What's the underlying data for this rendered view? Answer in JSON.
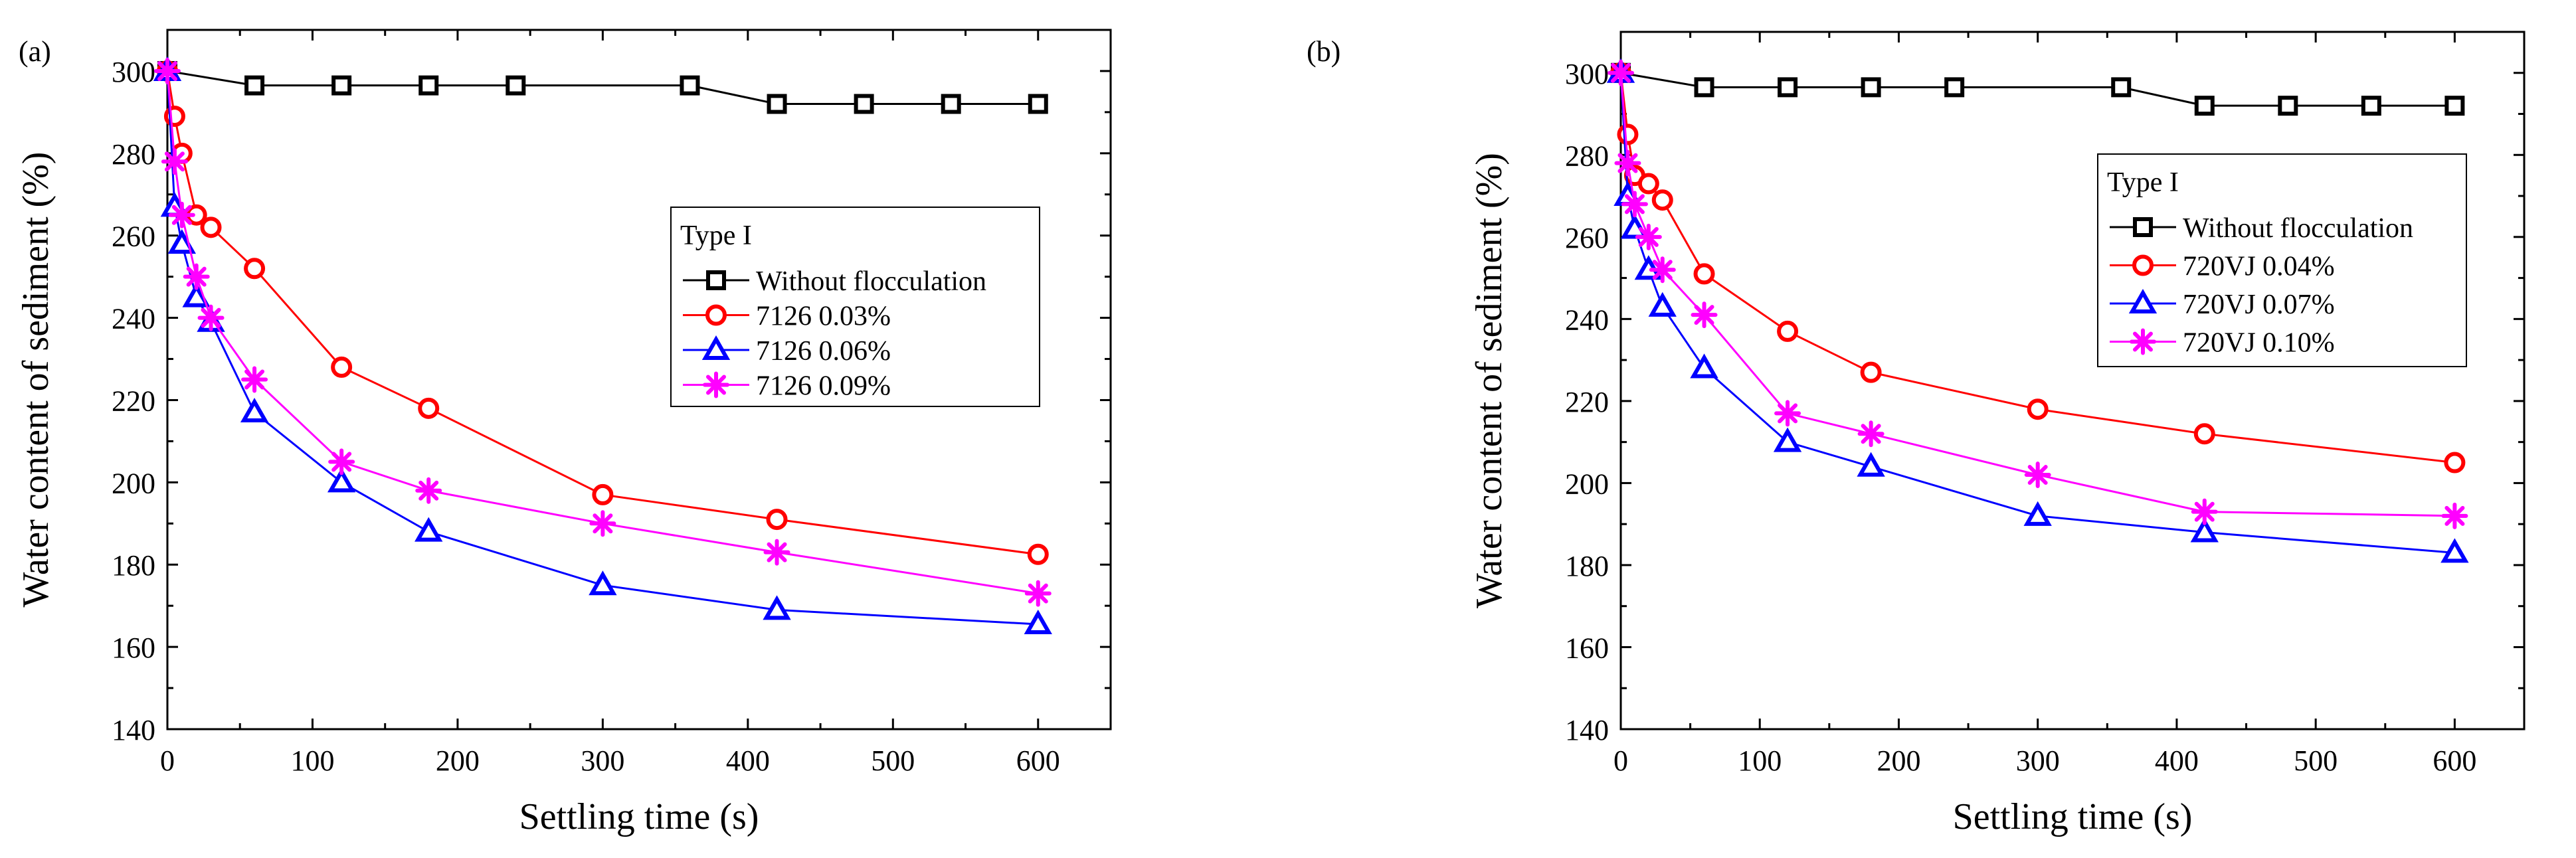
{
  "chart_data": [
    {
      "type": "line",
      "panel_label": "(a)",
      "xlabel": "Settling time (s)",
      "ylabel": "Water content of sediment (%)",
      "xlim": [
        0,
        650
      ],
      "ylim": [
        140,
        310
      ],
      "xticks": [
        0,
        100,
        200,
        300,
        400,
        500,
        600
      ],
      "yticks": [
        140,
        160,
        180,
        200,
        220,
        240,
        260,
        280,
        300
      ],
      "legend_title": "Type I",
      "legend_position": "center-right",
      "series": [
        {
          "name": "Without flocculation",
          "color": "#000000",
          "marker": "square",
          "x": [
            0,
            60,
            120,
            180,
            240,
            360,
            420,
            480,
            540,
            600
          ],
          "y": [
            300,
            296.5,
            296.5,
            296.5,
            296.5,
            296.5,
            292,
            292,
            292,
            292
          ]
        },
        {
          "name": "7126 0.03%",
          "color": "#ff0000",
          "marker": "circle",
          "x": [
            0,
            5,
            10,
            20,
            30,
            60,
            120,
            180,
            300,
            420,
            600
          ],
          "y": [
            300,
            289,
            280,
            265,
            262,
            252,
            228,
            218,
            197,
            191,
            182.5
          ]
        },
        {
          "name": "7126 0.06%",
          "color": "#0000ff",
          "marker": "triangle",
          "x": [
            0,
            5,
            10,
            20,
            30,
            60,
            120,
            180,
            300,
            420,
            600
          ],
          "y": [
            300,
            267,
            258,
            245,
            239,
            217,
            200,
            188,
            175,
            169,
            165.5
          ]
        },
        {
          "name": "7126 0.09%",
          "color": "#ff00ff",
          "marker": "asterisk",
          "x": [
            0,
            5,
            10,
            20,
            30,
            60,
            120,
            180,
            300,
            420,
            600
          ],
          "y": [
            300,
            278,
            265,
            250,
            240,
            225,
            205,
            198,
            190,
            183,
            173
          ]
        }
      ]
    },
    {
      "type": "line",
      "panel_label": "(b)",
      "xlabel": "Settling time (s)",
      "ylabel": "Water content of sediment (%)",
      "xlim": [
        0,
        650
      ],
      "ylim": [
        140,
        310
      ],
      "xticks": [
        0,
        100,
        200,
        300,
        400,
        500,
        600
      ],
      "yticks": [
        140,
        160,
        180,
        200,
        220,
        240,
        260,
        280,
        300
      ],
      "legend_title": "Type I",
      "legend_position": "top-right",
      "series": [
        {
          "name": "Without flocculation",
          "color": "#000000",
          "marker": "square",
          "x": [
            0,
            60,
            120,
            180,
            240,
            360,
            420,
            480,
            540,
            600
          ],
          "y": [
            300,
            296.5,
            296.5,
            296.5,
            296.5,
            296.5,
            292,
            292,
            292,
            292
          ]
        },
        {
          "name": "720VJ 0.04%",
          "color": "#ff0000",
          "marker": "circle",
          "x": [
            0,
            5,
            10,
            20,
            30,
            60,
            120,
            180,
            300,
            420,
            600
          ],
          "y": [
            300,
            285,
            275,
            273,
            269,
            251,
            237,
            227,
            218,
            212,
            205
          ]
        },
        {
          "name": "720VJ 0.07%",
          "color": "#0000ff",
          "marker": "triangle",
          "x": [
            0,
            5,
            10,
            20,
            30,
            60,
            120,
            180,
            300,
            420,
            600
          ],
          "y": [
            300,
            270,
            262,
            252,
            243,
            228,
            210,
            204,
            192,
            188,
            183
          ]
        },
        {
          "name": "720VJ 0.10%",
          "color": "#ff00ff",
          "marker": "asterisk",
          "x": [
            0,
            5,
            10,
            20,
            30,
            60,
            120,
            180,
            300,
            420,
            600
          ],
          "y": [
            300,
            278,
            268,
            260,
            252,
            241,
            217,
            212,
            202,
            193,
            192
          ]
        }
      ]
    }
  ]
}
